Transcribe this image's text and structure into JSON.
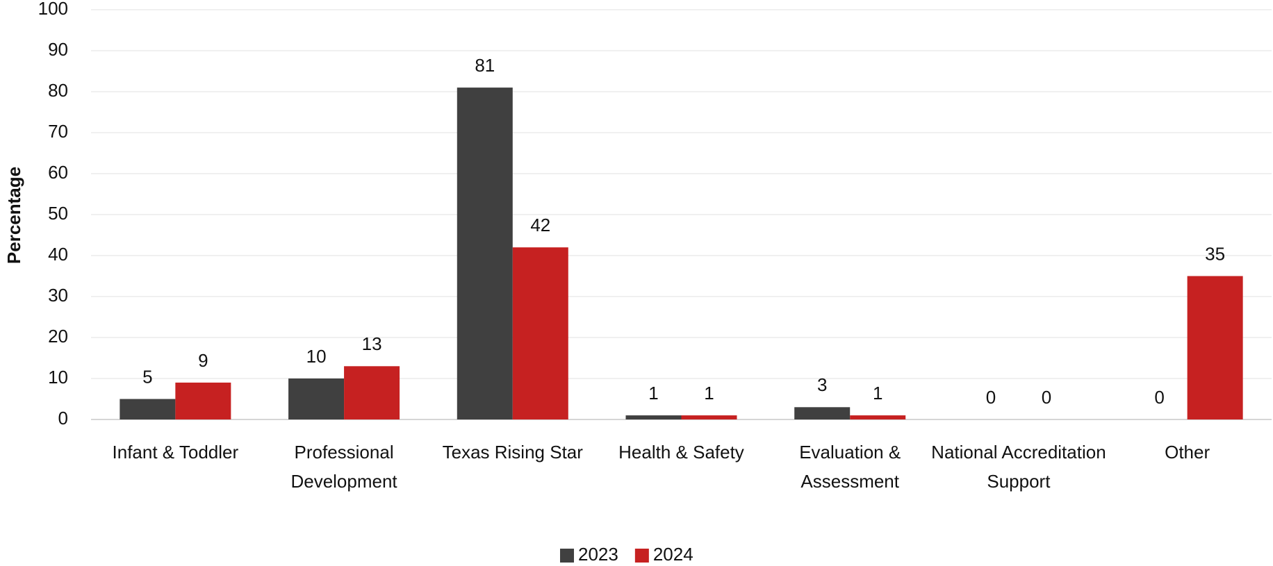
{
  "chart_data": {
    "type": "bar",
    "y_label": "Percentage",
    "categories": [
      "Infant & Toddler",
      "Professional Development",
      "Texas Rising Star",
      "Health & Safety",
      "Evaluation & Assessment",
      "National Accreditation Support",
      "Other"
    ],
    "series": [
      {
        "name": "2023",
        "color": "#404040",
        "values": [
          5,
          10,
          81,
          1,
          3,
          0,
          0
        ]
      },
      {
        "name": "2024",
        "color": "#c62121",
        "values": [
          9,
          13,
          42,
          1,
          1,
          0,
          35
        ]
      }
    ],
    "ylim": [
      0,
      100
    ],
    "yticks": [
      0,
      10,
      20,
      30,
      40,
      50,
      60,
      70,
      80,
      90,
      100
    ],
    "grid": true,
    "legend": "bottom"
  }
}
